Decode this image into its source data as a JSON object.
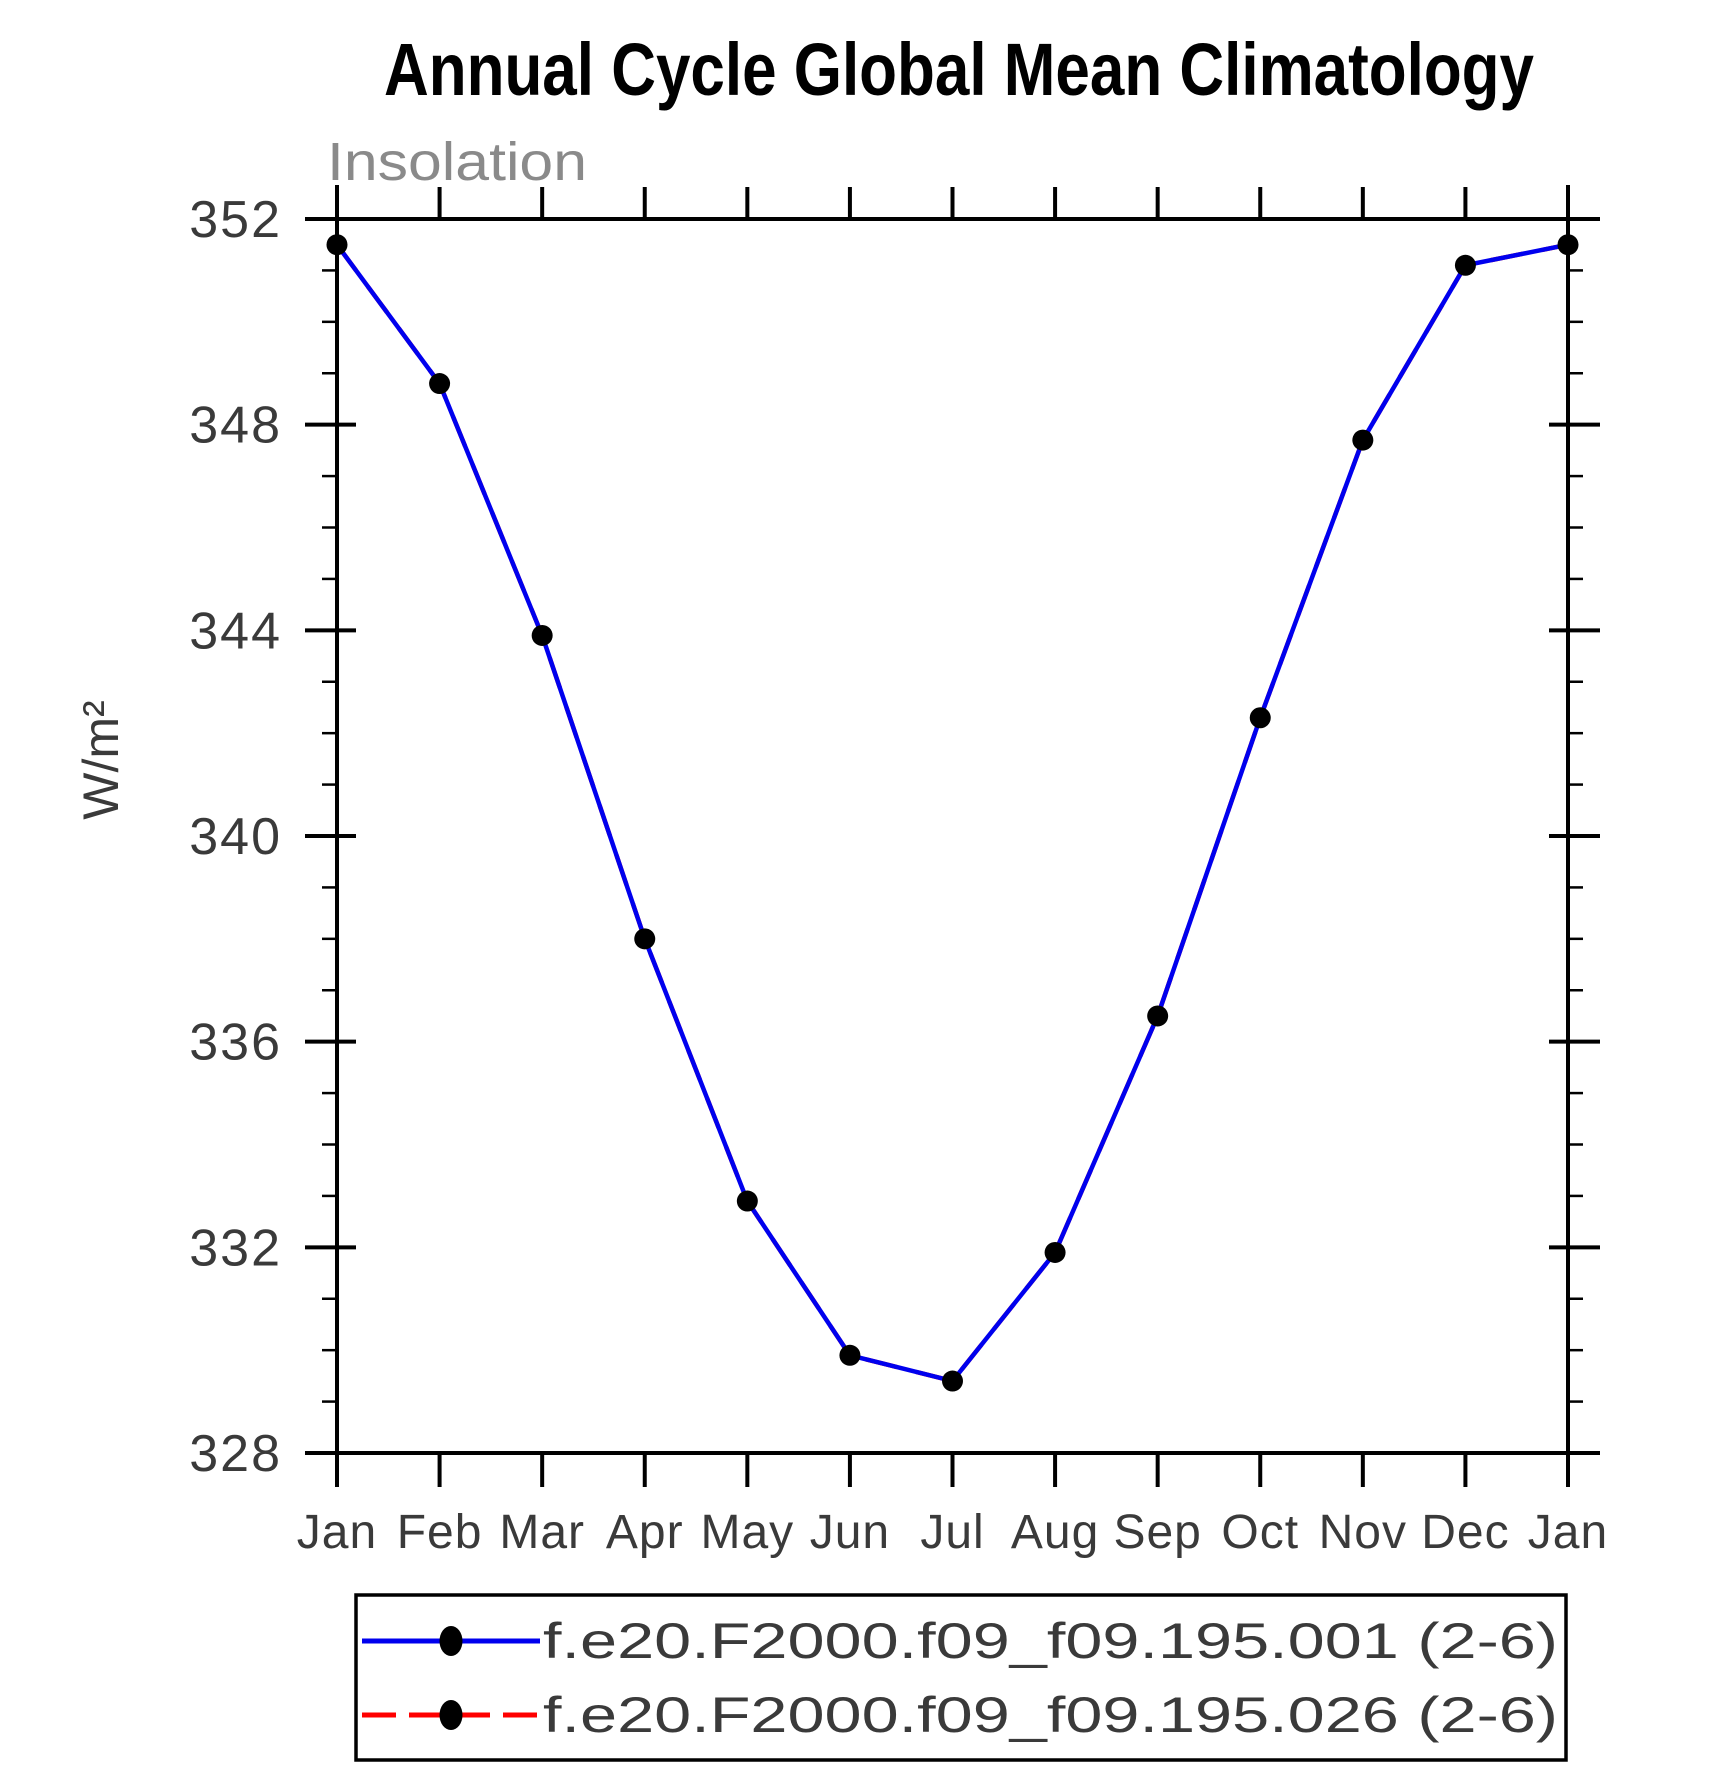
{
  "page": {
    "background": "#ffffff"
  },
  "chart_data": {
    "type": "line",
    "title": "Annual Cycle Global Mean Climatology",
    "subtitle": "Insolation",
    "ylabel": "W/m²",
    "xlabel": "",
    "categories": [
      "Jan",
      "Feb",
      "Mar",
      "Apr",
      "May",
      "Jun",
      "Jul",
      "Aug",
      "Sep",
      "Oct",
      "Nov",
      "Dec",
      "Jan"
    ],
    "ylim": [
      328,
      352
    ],
    "ytick_major": [
      352,
      348,
      344,
      340,
      336,
      332,
      328
    ],
    "ytick_minor_interval": 1,
    "grid": false,
    "legend_position": "bottom",
    "axis_color": "#000000",
    "marker_color": "#000000",
    "series": [
      {
        "name": "f.e20.F2000.f09_f09.195.001 (2-6)",
        "color": "#0000ee",
        "line_style": "solid",
        "marker": "filled-circle",
        "values": [
          351.5,
          348.8,
          343.9,
          338.0,
          332.9,
          329.9,
          329.4,
          331.9,
          336.5,
          342.3,
          347.7,
          351.1,
          351.5
        ]
      },
      {
        "name": "f.e20.F2000.f09_f09.195.026 (2-6)",
        "color": "#ff0000",
        "line_style": "dashed",
        "marker": "filled-circle",
        "values": [
          351.5,
          348.8,
          343.9,
          338.0,
          332.9,
          329.9,
          329.4,
          331.9,
          336.5,
          342.3,
          347.7,
          351.1,
          351.5
        ]
      }
    ]
  }
}
